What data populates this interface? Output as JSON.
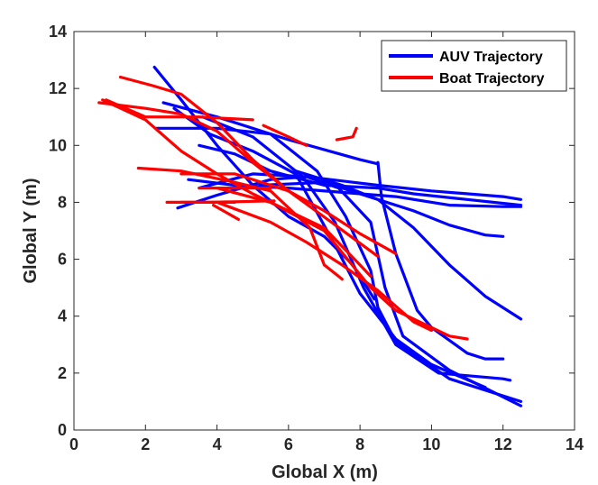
{
  "chart_data": {
    "type": "line",
    "title": "",
    "xlabel": "Global X (m)",
    "ylabel": "Global Y (m)",
    "xlim": [
      0,
      14
    ],
    "ylim": [
      0,
      14
    ],
    "xticks": [
      0,
      2,
      4,
      6,
      8,
      10,
      12,
      14
    ],
    "yticks": [
      0,
      2,
      4,
      6,
      8,
      10,
      12,
      14
    ],
    "grid": false,
    "legend_position": "top-right",
    "legend": [
      {
        "label": "AUV Trajectory",
        "color": "#0000ff"
      },
      {
        "label": "Boat Trajectory",
        "color": "#ff0000"
      }
    ],
    "series": [
      {
        "name": "AUV Trajectory",
        "color": "#0000ff",
        "tracks": [
          [
            [
              2.25,
              12.75
            ],
            [
              3.0,
              11.6
            ],
            [
              4.0,
              10.0
            ],
            [
              5.0,
              8.6
            ],
            [
              6.0,
              7.5
            ],
            [
              7.0,
              6.8
            ],
            [
              7.8,
              5.8
            ],
            [
              8.4,
              4.6
            ]
          ],
          [
            [
              2.5,
              11.5
            ],
            [
              4.0,
              11.0
            ],
            [
              6.0,
              10.2
            ],
            [
              8.0,
              9.5
            ],
            [
              8.5,
              9.35
            ]
          ],
          [
            [
              8.5,
              9.4
            ],
            [
              8.6,
              8.2
            ],
            [
              9.0,
              6.2
            ],
            [
              9.6,
              4.2
            ],
            [
              10.0,
              3.6
            ],
            [
              11.0,
              2.7
            ],
            [
              11.5,
              2.5
            ],
            [
              12.0,
              2.5
            ]
          ],
          [
            [
              2.8,
              11.3
            ],
            [
              3.8,
              10.4
            ],
            [
              5.0,
              9.8
            ],
            [
              6.2,
              9.0
            ],
            [
              7.3,
              6.5
            ],
            [
              8.0,
              4.8
            ],
            [
              9.0,
              3.2
            ],
            [
              10.0,
              2.3
            ],
            [
              11.5,
              1.5
            ]
          ],
          [
            [
              3.6,
              11.0
            ],
            [
              5.0,
              10.3
            ],
            [
              6.4,
              8.9
            ],
            [
              7.3,
              7.3
            ],
            [
              8.1,
              5.0
            ],
            [
              9.0,
              3.0
            ],
            [
              10.2,
              2.0
            ],
            [
              12.0,
              1.8
            ],
            [
              12.2,
              1.75
            ]
          ],
          [
            [
              2.3,
              10.6
            ],
            [
              4.0,
              10.6
            ],
            [
              5.5,
              10.4
            ],
            [
              6.8,
              9.1
            ],
            [
              7.6,
              7.5
            ],
            [
              8.3,
              5.6
            ],
            [
              8.5,
              4.3
            ],
            [
              9.0,
              3.1
            ],
            [
              10.5,
              1.8
            ],
            [
              12.5,
              1.0
            ]
          ],
          [
            [
              2.9,
              7.8
            ],
            [
              4.0,
              8.25
            ],
            [
              5.5,
              8.8
            ],
            [
              6.5,
              8.9
            ],
            [
              7.4,
              8.5
            ],
            [
              8.3,
              7.3
            ],
            [
              8.7,
              5.0
            ],
            [
              9.2,
              3.3
            ],
            [
              10.5,
              2.1
            ],
            [
              12.5,
              0.85
            ]
          ],
          [
            [
              3.5,
              10.0
            ],
            [
              4.5,
              9.7
            ],
            [
              5.5,
              9.1
            ],
            [
              7.0,
              8.6
            ],
            [
              8.5,
              8.5
            ],
            [
              9.5,
              8.3
            ],
            [
              11.0,
              8.1
            ],
            [
              12.5,
              7.9
            ]
          ],
          [
            [
              3.5,
              8.5
            ],
            [
              5.0,
              9.0
            ],
            [
              6.5,
              8.9
            ],
            [
              8.5,
              8.6
            ],
            [
              10.0,
              8.4
            ],
            [
              12.0,
              8.2
            ],
            [
              12.5,
              8.1
            ]
          ],
          [
            [
              3.2,
              8.8
            ],
            [
              4.5,
              8.6
            ],
            [
              6.0,
              8.5
            ],
            [
              7.5,
              8.35
            ],
            [
              9.0,
              8.2
            ],
            [
              10.5,
              7.9
            ],
            [
              12.0,
              7.85
            ],
            [
              12.5,
              7.85
            ]
          ],
          [
            [
              5.2,
              8.6
            ],
            [
              7.0,
              8.7
            ],
            [
              8.5,
              8.1
            ],
            [
              9.5,
              7.7
            ],
            [
              10.5,
              7.2
            ],
            [
              11.5,
              6.85
            ],
            [
              12.0,
              6.8
            ]
          ],
          [
            [
              6.2,
              9.1
            ],
            [
              7.5,
              8.6
            ],
            [
              8.5,
              8.1
            ],
            [
              9.5,
              7.1
            ],
            [
              10.5,
              5.8
            ],
            [
              11.5,
              4.7
            ],
            [
              12.5,
              3.9
            ]
          ]
        ]
      },
      {
        "name": "Boat Trajectory",
        "color": "#ff0000",
        "tracks": [
          [
            [
              0.8,
              11.6
            ],
            [
              2.0,
              10.9
            ],
            [
              3.0,
              9.8
            ],
            [
              4.0,
              9.0
            ],
            [
              5.0,
              8.3
            ],
            [
              6.0,
              7.7
            ],
            [
              7.0,
              7.1
            ],
            [
              8.0,
              5.8
            ],
            [
              8.3,
              5.4
            ]
          ],
          [
            [
              1.3,
              12.4
            ],
            [
              2.2,
              12.1
            ],
            [
              3.0,
              11.8
            ],
            [
              4.0,
              10.8
            ],
            [
              5.0,
              9.5
            ],
            [
              6.0,
              8.4
            ],
            [
              7.2,
              7.3
            ],
            [
              8.5,
              6.1
            ]
          ],
          [
            [
              0.9,
              11.6
            ],
            [
              2.0,
              11.0
            ],
            [
              3.5,
              11.0
            ],
            [
              5.0,
              10.9
            ]
          ],
          [
            [
              0.7,
              11.5
            ],
            [
              2.0,
              11.3
            ],
            [
              3.0,
              11.1
            ],
            [
              4.0,
              10.5
            ],
            [
              5.0,
              9.4
            ],
            [
              6.0,
              8.4
            ],
            [
              7.0,
              7.7
            ],
            [
              8.0,
              6.9
            ],
            [
              9.0,
              6.2
            ]
          ],
          [
            [
              1.8,
              9.2
            ],
            [
              3.0,
              9.1
            ],
            [
              4.5,
              8.7
            ],
            [
              5.5,
              8.4
            ],
            [
              6.6,
              7.1
            ],
            [
              7.0,
              5.8
            ],
            [
              7.4,
              5.4
            ],
            [
              7.5,
              5.3
            ]
          ],
          [
            [
              4.0,
              8.5
            ],
            [
              5.5,
              8.0
            ],
            [
              7.0,
              7.0
            ],
            [
              8.3,
              5.0
            ],
            [
              9.0,
              4.2
            ],
            [
              10.5,
              3.3
            ],
            [
              11.0,
              3.2
            ]
          ],
          [
            [
              4.0,
              8.0
            ],
            [
              5.5,
              7.3
            ],
            [
              6.5,
              6.6
            ],
            [
              7.5,
              5.8
            ],
            [
              8.5,
              4.9
            ],
            [
              9.5,
              3.8
            ],
            [
              10.0,
              3.5
            ]
          ],
          [
            [
              3.0,
              9.0
            ],
            [
              4.5,
              9.0
            ],
            [
              6.0,
              8.4
            ]
          ],
          [
            [
              3.5,
              8.5
            ],
            [
              5.5,
              8.5
            ]
          ],
          [
            [
              3.0,
              8.0
            ],
            [
              4.5,
              8.0
            ]
          ],
          [
            [
              2.6,
              8.0
            ],
            [
              3.8,
              8.0
            ],
            [
              5.6,
              8.05
            ]
          ],
          [
            [
              3.9,
              7.9
            ],
            [
              4.6,
              7.4
            ]
          ],
          [
            [
              5.3,
              10.7
            ],
            [
              6.0,
              10.3
            ],
            [
              6.5,
              10.0
            ]
          ],
          [
            [
              7.35,
              10.2
            ],
            [
              7.8,
              10.3
            ],
            [
              7.9,
              10.6
            ]
          ]
        ]
      }
    ]
  }
}
